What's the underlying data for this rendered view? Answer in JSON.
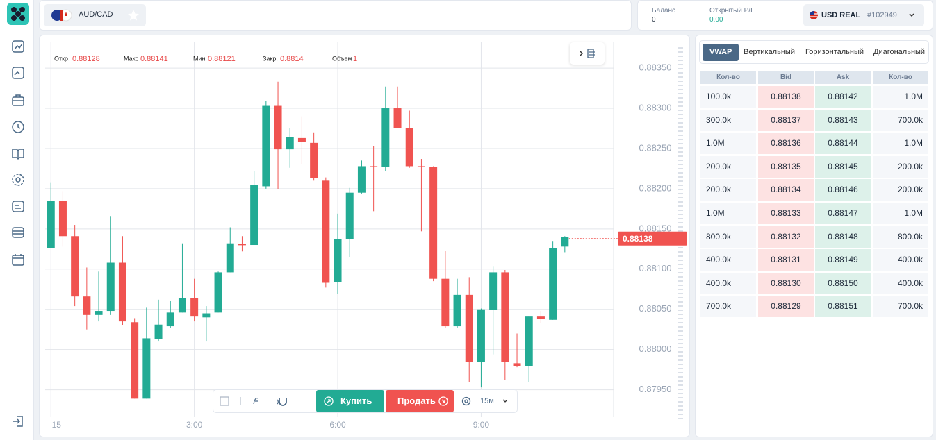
{
  "header": {
    "pair": "AUD/CAD",
    "balance_label": "Баланс",
    "balance": 0,
    "pl_label": "Открытый P/L",
    "pl": "0.00",
    "account": "USD REAL",
    "account_id": "#102949"
  },
  "chart_data": {
    "type": "candlestick",
    "ohlc_info": [
      {
        "label": "Откр.",
        "value": 0.88128
      },
      {
        "label": "Макс",
        "value": 0.88141
      },
      {
        "label": "Мин",
        "value": 0.88121
      },
      {
        "label": "Закр.",
        "value": 0.8814
      },
      {
        "label": "Объем",
        "value": 1
      }
    ],
    "x": [
      0,
      0.25,
      0.5,
      0.75,
      1,
      1.25,
      1.5,
      1.75,
      2,
      2.25,
      2.5,
      2.75,
      3,
      3.25,
      3.5,
      3.75,
      4,
      4.25,
      4.5,
      4.75,
      5,
      5.25,
      5.5,
      5.75,
      6,
      6.25,
      6.5,
      6.75,
      7,
      7.25,
      7.5,
      7.75,
      8,
      8.25,
      8.5,
      8.75,
      9,
      9.25,
      9.5,
      9.75,
      10,
      10.25,
      10.5,
      10.75
    ],
    "open": [
      0.88126,
      0.88185,
      0.88141,
      0.88066,
      0.88043,
      0.88048,
      0.88108,
      0.88034,
      0.87939,
      0.88013,
      0.88029,
      0.88046,
      0.88064,
      0.8804,
      0.88046,
      0.88096,
      0.88131,
      0.8813,
      0.88203,
      0.88303,
      0.88249,
      0.88263,
      0.88257,
      0.8821,
      0.88084,
      0.88137,
      0.88195,
      0.88228,
      0.88227,
      0.883,
      0.88275,
      0.88228,
      0.88227,
      0.88088,
      0.88029,
      0.88068,
      0.87985,
      0.88049,
      0.88096,
      0.87983,
      0.87979,
      0.88041,
      0.88037,
      0.88128
    ],
    "high": [
      0.88208,
      0.88197,
      0.88155,
      0.88102,
      0.88097,
      0.88166,
      0.88141,
      0.88039,
      0.88052,
      0.88062,
      0.88061,
      0.88132,
      0.88088,
      0.88054,
      0.88097,
      0.88152,
      0.88141,
      0.88222,
      0.88309,
      0.88333,
      0.88275,
      0.8829,
      0.8827,
      0.88214,
      0.88169,
      0.88201,
      0.88235,
      0.88253,
      0.88327,
      0.88327,
      0.88297,
      0.88237,
      0.88228,
      0.88123,
      0.88088,
      0.8809,
      0.88051,
      0.88103,
      0.88099,
      0.8802,
      0.88041,
      0.88048,
      0.88135,
      0.88141
    ],
    "low": [
      0.88126,
      0.88128,
      0.88054,
      0.88025,
      0.88035,
      0.88043,
      0.8803,
      0.87939,
      0.87939,
      0.8801,
      0.88027,
      0.88046,
      0.88035,
      0.8801,
      0.88046,
      0.88096,
      0.88122,
      0.8813,
      0.882,
      0.88199,
      0.88226,
      0.88231,
      0.8821,
      0.88077,
      0.88069,
      0.88115,
      0.88194,
      0.88172,
      0.88222,
      0.88275,
      0.88226,
      0.88147,
      0.88085,
      0.88027,
      0.88027,
      0.8796,
      0.87953,
      0.87994,
      0.87962,
      0.87978,
      0.8796,
      0.88033,
      0.88037,
      0.88121
    ],
    "close": [
      0.88185,
      0.88141,
      0.88066,
      0.88043,
      0.88048,
      0.88108,
      0.88035,
      0.87939,
      0.88014,
      0.88031,
      0.88046,
      0.88064,
      0.88041,
      0.88045,
      0.88096,
      0.88132,
      0.8813,
      0.88205,
      0.88303,
      0.88249,
      0.88264,
      0.88258,
      0.88213,
      0.88083,
      0.88137,
      0.88195,
      0.88228,
      0.88227,
      0.883,
      0.88275,
      0.88228,
      0.88227,
      0.88088,
      0.88029,
      0.88068,
      0.87985,
      0.8805,
      0.88096,
      0.87985,
      0.87979,
      0.88041,
      0.88038,
      0.88126,
      0.8814
    ],
    "up_color": "#22ab94",
    "down_color": "#f05350",
    "xlim": [
      -0.12,
      11.77
    ],
    "xticks": [
      {
        "value": 0,
        "label": "15"
      },
      {
        "value": 3,
        "label": "3:00"
      },
      {
        "value": 6,
        "label": "6:00"
      },
      {
        "value": 9,
        "label": "9:00"
      }
    ],
    "ylim": [
      0.87916,
      0.88382
    ],
    "yticks": [
      {
        "value": 0.8795,
        "label": "0.87950"
      },
      {
        "value": 0.88,
        "label": "0.88000"
      },
      {
        "value": 0.8805,
        "label": "0.88050"
      },
      {
        "value": 0.881,
        "label": "0.88100"
      },
      {
        "value": 0.8815,
        "label": "0.88150"
      },
      {
        "value": 0.882,
        "label": "0.88200"
      },
      {
        "value": 0.8825,
        "label": "0.88250"
      },
      {
        "value": 0.883,
        "label": "0.88300"
      },
      {
        "value": 0.8835,
        "label": "0.88350"
      }
    ],
    "grid": true,
    "current_price": 0.88138
  },
  "toolbar": {
    "buy": "Купить",
    "sell": "Продать",
    "timeframe": "15м"
  },
  "order_book": {
    "tabs": [
      "VWAP",
      "Вертикальный",
      "Горизонтальный",
      "Диагональный"
    ],
    "active_tab": 0,
    "columns": [
      "Кол-во",
      "Bid",
      "Ask",
      "Кол-во"
    ],
    "rows": [
      [
        "100.0k",
        "0.88138",
        "0.88142",
        "1.0M"
      ],
      [
        "300.0k",
        "0.88137",
        "0.88143",
        "700.0k"
      ],
      [
        "1.0M",
        "0.88136",
        "0.88144",
        "1.0M"
      ],
      [
        "200.0k",
        "0.88135",
        "0.88145",
        "200.0k"
      ],
      [
        "200.0k",
        "0.88134",
        "0.88146",
        "200.0k"
      ],
      [
        "1.0M",
        "0.88133",
        "0.88147",
        "1.0M"
      ],
      [
        "800.0k",
        "0.88132",
        "0.88148",
        "800.0k"
      ],
      [
        "400.0k",
        "0.88131",
        "0.88149",
        "400.0k"
      ],
      [
        "400.0k",
        "0.88130",
        "0.88150",
        "400.0k"
      ],
      [
        "700.0k",
        "0.88129",
        "0.88151",
        "700.0k"
      ]
    ]
  }
}
